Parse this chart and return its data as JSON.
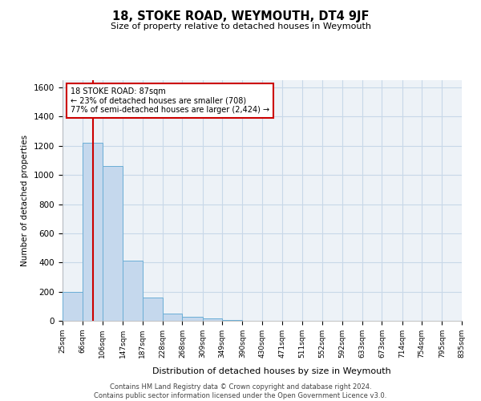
{
  "title": "18, STOKE ROAD, WEYMOUTH, DT4 9JF",
  "subtitle": "Size of property relative to detached houses in Weymouth",
  "xlabel": "Distribution of detached houses by size in Weymouth",
  "ylabel": "Number of detached properties",
  "footer_line1": "Contains HM Land Registry data © Crown copyright and database right 2024.",
  "footer_line2": "Contains public sector information licensed under the Open Government Licence v3.0.",
  "bin_edges": [
    25,
    66,
    106,
    147,
    187,
    228,
    268,
    309,
    349,
    390,
    430,
    471,
    511,
    552,
    592,
    633,
    673,
    714,
    754,
    795,
    835
  ],
  "bar_heights": [
    200,
    1220,
    1060,
    410,
    160,
    50,
    28,
    15,
    5,
    0,
    0,
    0,
    0,
    0,
    0,
    0,
    0,
    0,
    0,
    0
  ],
  "bar_color": "#c5d8ed",
  "bar_edgecolor": "#6baed6",
  "property_size": 87,
  "redline_color": "#cc0000",
  "annotation_line1": "18 STOKE ROAD: 87sqm",
  "annotation_line2": "← 23% of detached houses are smaller (708)",
  "annotation_line3": "77% of semi-detached houses are larger (2,424) →",
  "annotation_box_edgecolor": "#cc0000",
  "ylim": [
    0,
    1650
  ],
  "yticks": [
    0,
    200,
    400,
    600,
    800,
    1000,
    1200,
    1400,
    1600
  ],
  "grid_color": "#c8d8e8",
  "background_color": "#edf2f7"
}
